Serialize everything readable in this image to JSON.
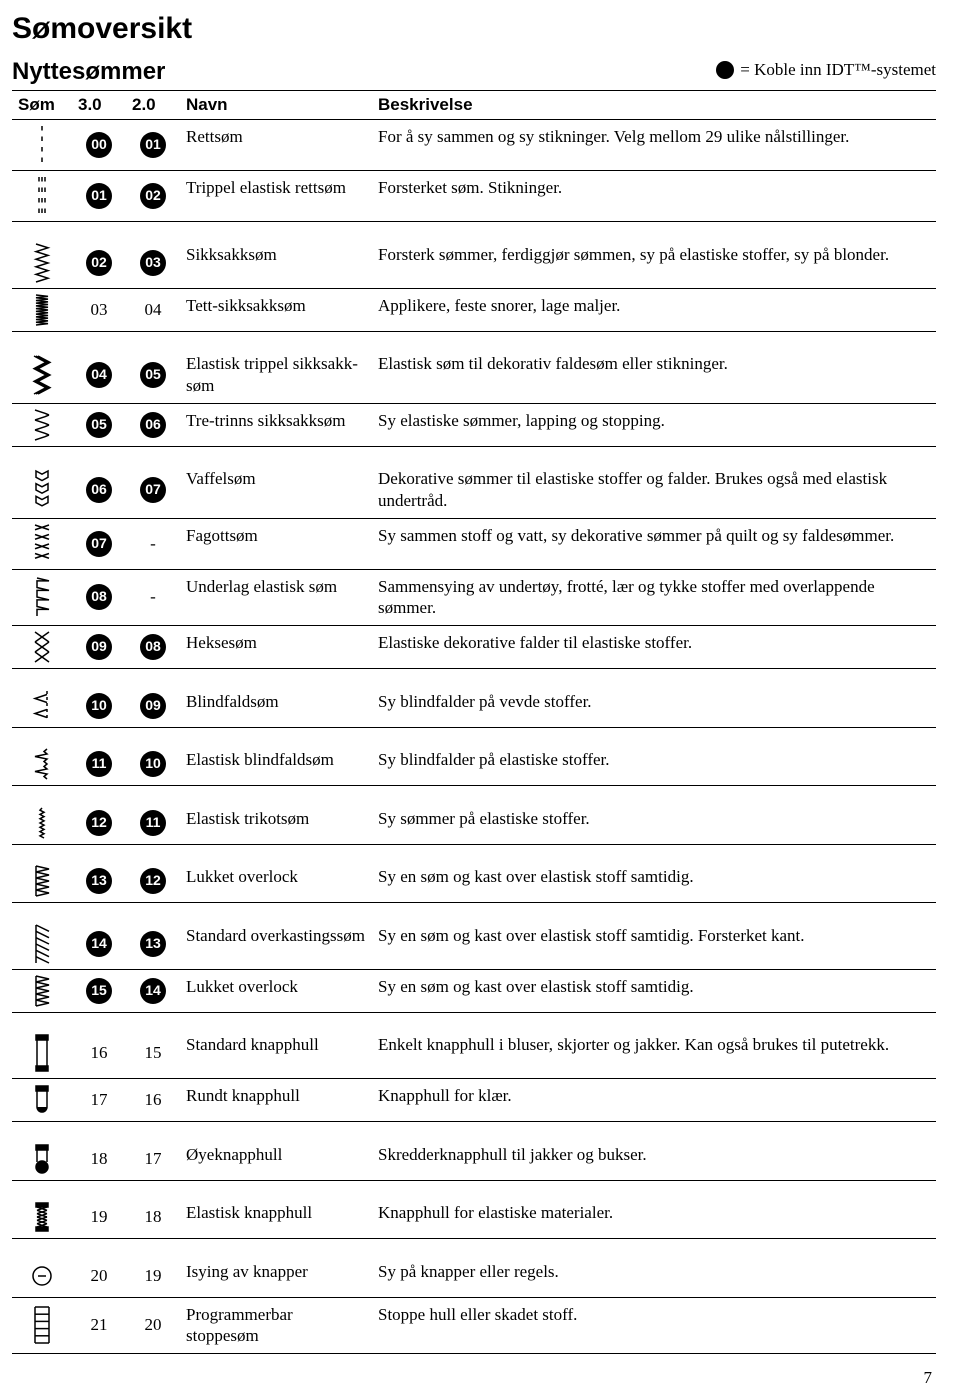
{
  "title": "Sømoversikt",
  "subtitle": "Nyttesømmer",
  "legend": "= Koble inn IDT™-systemet",
  "page_number": "7",
  "headers": {
    "stitch": "Søm",
    "col30": "3.0",
    "col20": "2.0",
    "name": "Navn",
    "desc": "Beskrivelse"
  },
  "groups": [
    {
      "rows": [
        {
          "icon": "straight",
          "n1": {
            "v": "00",
            "c": true
          },
          "n2": {
            "v": "01",
            "c": true
          },
          "name": "Rettsøm",
          "desc": "For å sy sammen og sy stikninger. Velg mellom 29 ulike nålstillinger."
        },
        {
          "icon": "triple-straight",
          "n1": {
            "v": "01",
            "c": true
          },
          "n2": {
            "v": "02",
            "c": true
          },
          "name": "Trippel elastisk rettsøm",
          "desc": "Forsterket søm. Stikninger."
        }
      ]
    },
    {
      "rows": [
        {
          "icon": "zigzag",
          "n1": {
            "v": "02",
            "c": true
          },
          "n2": {
            "v": "03",
            "c": true
          },
          "name": "Sikksakksøm",
          "desc": "Forsterk sømmer, ferdiggjør sømmen, sy på elastiske stoffer, sy på blonder."
        },
        {
          "icon": "dense-zigzag",
          "n1": {
            "v": "03",
            "c": false
          },
          "n2": {
            "v": "04",
            "c": false
          },
          "name": "Tett-sikksakksøm",
          "desc": "Applikere, feste snorer, lage maljer."
        }
      ]
    },
    {
      "rows": [
        {
          "icon": "triple-zigzag",
          "n1": {
            "v": "04",
            "c": true
          },
          "n2": {
            "v": "05",
            "c": true
          },
          "name": "Elastisk trippel sikksakk-søm",
          "desc": "Elastisk søm til dekorativ faldesøm eller stikninger."
        },
        {
          "icon": "three-step-zigzag",
          "n1": {
            "v": "05",
            "c": true
          },
          "n2": {
            "v": "06",
            "c": true
          },
          "name": "Tre-trinns sikksakksøm",
          "desc": "Sy elastiske sømmer, lapping og stopping."
        }
      ]
    },
    {
      "rows": [
        {
          "icon": "honeycomb",
          "n1": {
            "v": "06",
            "c": true
          },
          "n2": {
            "v": "07",
            "c": true
          },
          "name": "Vaffelsøm",
          "desc": "Dekorative sømmer til elastiske stoffer og falder. Brukes også med elastisk undertråd."
        },
        {
          "icon": "fagott",
          "n1": {
            "v": "07",
            "c": true
          },
          "n2": {
            "v": "-",
            "c": false
          },
          "name": "Fagottsøm",
          "desc": "Sy sammen stoff og vatt, sy dekorative sømmer på quilt og sy faldesømmer."
        },
        {
          "icon": "underlay-elastic",
          "n1": {
            "v": "08",
            "c": true
          },
          "n2": {
            "v": "-",
            "c": false
          },
          "name": "Underlag elastisk søm",
          "desc": "Sammensying av undertøy, frotté, lær og tykke stoffer med overlappende sømmer."
        },
        {
          "icon": "cross-stitch",
          "n1": {
            "v": "09",
            "c": true
          },
          "n2": {
            "v": "08",
            "c": true
          },
          "name": "Heksesøm",
          "desc": "Elastiske dekorative falder til elastiske stoffer."
        }
      ]
    },
    {
      "rows": [
        {
          "icon": "blindhem",
          "n1": {
            "v": "10",
            "c": true
          },
          "n2": {
            "v": "09",
            "c": true
          },
          "name": "Blindfaldsøm",
          "desc": "Sy blindfalder på vevde stoffer."
        }
      ]
    },
    {
      "rows": [
        {
          "icon": "elastic-blindhem",
          "n1": {
            "v": "11",
            "c": true
          },
          "n2": {
            "v": "10",
            "c": true
          },
          "name": "Elastisk blindfaldsøm",
          "desc": "Sy blindfalder på elastiske stoffer."
        }
      ]
    },
    {
      "rows": [
        {
          "icon": "tricot",
          "n1": {
            "v": "12",
            "c": true
          },
          "n2": {
            "v": "11",
            "c": true
          },
          "name": "Elastisk trikotsøm",
          "desc": "Sy sømmer på elastiske stoffer."
        }
      ]
    },
    {
      "rows": [
        {
          "icon": "closed-overlock",
          "n1": {
            "v": "13",
            "c": true
          },
          "n2": {
            "v": "12",
            "c": true
          },
          "name": "Lukket overlock",
          "desc": "Sy en søm og kast over elastisk stoff samtidig."
        }
      ]
    },
    {
      "rows": [
        {
          "icon": "overcast",
          "n1": {
            "v": "14",
            "c": true
          },
          "n2": {
            "v": "13",
            "c": true
          },
          "name": "Standard overkastingssøm",
          "desc": "Sy en søm og kast over elastisk stoff samtidig. Forsterket kant."
        },
        {
          "icon": "closed-overlock2",
          "n1": {
            "v": "15",
            "c": true
          },
          "n2": {
            "v": "14",
            "c": true
          },
          "name": "Lukket overlock",
          "desc": "Sy en søm og kast over elastisk stoff samtidig."
        }
      ]
    },
    {
      "rows": [
        {
          "icon": "buttonhole",
          "n1": {
            "v": "16",
            "c": false
          },
          "n2": {
            "v": "15",
            "c": false
          },
          "name": "Standard knapphull",
          "desc": "Enkelt knapphull i bluser, skjorter og jakker. Kan også brukes til putetrekk."
        },
        {
          "icon": "round-buttonhole",
          "n1": {
            "v": "17",
            "c": false
          },
          "n2": {
            "v": "16",
            "c": false
          },
          "name": "Rundt knapphull",
          "desc": "Knapphull for klær."
        }
      ]
    },
    {
      "rows": [
        {
          "icon": "keyhole-buttonhole",
          "n1": {
            "v": "18",
            "c": false
          },
          "n2": {
            "v": "17",
            "c": false
          },
          "name": "Øyeknapphull",
          "desc": "Skredderknapphull til jakker og bukser."
        }
      ]
    },
    {
      "rows": [
        {
          "icon": "elastic-buttonhole",
          "n1": {
            "v": "19",
            "c": false
          },
          "n2": {
            "v": "18",
            "c": false
          },
          "name": "Elastisk knapphull",
          "desc": "Knapphull for elastiske materialer."
        }
      ]
    },
    {
      "rows": [
        {
          "icon": "button-sew",
          "n1": {
            "v": "20",
            "c": false
          },
          "n2": {
            "v": "19",
            "c": false
          },
          "name": "Isying av knapper",
          "desc": "Sy på knapper eller regels."
        },
        {
          "icon": "darning",
          "n1": {
            "v": "21",
            "c": false
          },
          "n2": {
            "v": "20",
            "c": false
          },
          "name": "Programmerbar stoppesøm",
          "desc": "Stoppe hull eller skadet stoff."
        }
      ]
    }
  ]
}
